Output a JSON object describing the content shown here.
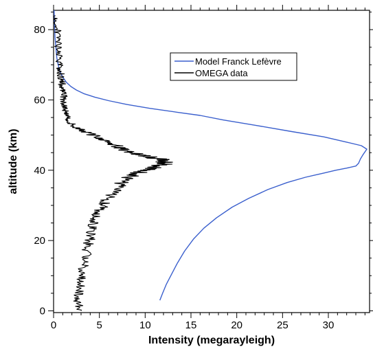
{
  "chart_data": {
    "type": "line",
    "xlabel": "Intensity (megarayleigh)",
    "ylabel": "altitude (km)",
    "xlim": [
      0,
      34.5
    ],
    "ylim": [
      -0.5,
      85.5
    ],
    "x_ticks_major": [
      0,
      5,
      10,
      15,
      20,
      25,
      30
    ],
    "y_ticks_major": [
      0,
      20,
      40,
      60,
      80
    ],
    "grid": false,
    "legend_placement": "top-right",
    "series": [
      {
        "name": "Model Franck Lefèvre",
        "color": "#3a5fcd",
        "points": [
          [
            11.6,
            3
          ],
          [
            11.9,
            5
          ],
          [
            12.3,
            7.5
          ],
          [
            12.9,
            10.5
          ],
          [
            13.5,
            13.5
          ],
          [
            14.3,
            17
          ],
          [
            15.3,
            20.5
          ],
          [
            16.4,
            23.5
          ],
          [
            17.8,
            26.5
          ],
          [
            19.5,
            29.5
          ],
          [
            21.3,
            32
          ],
          [
            23.4,
            34.5
          ],
          [
            25.5,
            36.5
          ],
          [
            27.5,
            38
          ],
          [
            29.5,
            39.2
          ],
          [
            30.8,
            40
          ],
          [
            32.0,
            40.6
          ],
          [
            33.0,
            41.2
          ],
          [
            33.3,
            42
          ],
          [
            33.5,
            43.2
          ],
          [
            33.8,
            44.5
          ],
          [
            34.2,
            46
          ],
          [
            33.6,
            47
          ],
          [
            32.0,
            48
          ],
          [
            29.5,
            49.5
          ],
          [
            26.0,
            51
          ],
          [
            22.0,
            52.8
          ],
          [
            18.5,
            54.3
          ],
          [
            16.0,
            55.6
          ],
          [
            13.5,
            56.5
          ],
          [
            10.5,
            57.6
          ],
          [
            8.0,
            58.7
          ],
          [
            6.0,
            59.8
          ],
          [
            4.5,
            60.8
          ],
          [
            3.3,
            61.8
          ],
          [
            2.5,
            62.8
          ],
          [
            1.9,
            63.8
          ],
          [
            1.4,
            65
          ],
          [
            1.0,
            66.5
          ],
          [
            0.7,
            68
          ],
          [
            0.5,
            70
          ],
          [
            0.35,
            72
          ],
          [
            0.25,
            75
          ],
          [
            0.15,
            78
          ],
          [
            0.1,
            82
          ],
          [
            0.05,
            85.5
          ]
        ]
      },
      {
        "name": "OMEGA data",
        "color": "#000000",
        "points": [
          [
            3.0,
            0
          ],
          [
            2.6,
            3
          ],
          [
            2.8,
            6
          ],
          [
            3.0,
            9
          ],
          [
            3.2,
            12
          ],
          [
            3.5,
            15
          ],
          [
            3.7,
            18
          ],
          [
            4.0,
            21
          ],
          [
            4.3,
            24
          ],
          [
            4.6,
            26.5
          ],
          [
            5.2,
            29
          ],
          [
            5.8,
            31.5
          ],
          [
            6.6,
            34
          ],
          [
            7.4,
            36.5
          ],
          [
            8.5,
            38.5
          ],
          [
            10.0,
            40
          ],
          [
            11.3,
            41
          ],
          [
            12.4,
            42
          ],
          [
            11.8,
            43
          ],
          [
            10.0,
            44
          ],
          [
            8.5,
            45
          ],
          [
            7.5,
            46
          ],
          [
            6.8,
            47
          ],
          [
            5.8,
            48.5
          ],
          [
            4.3,
            50
          ],
          [
            3.0,
            51.5
          ],
          [
            2.0,
            53
          ],
          [
            1.5,
            55
          ],
          [
            1.3,
            57
          ],
          [
            1.2,
            59
          ],
          [
            1.1,
            61
          ],
          [
            1.0,
            63
          ],
          [
            0.9,
            65
          ],
          [
            0.8,
            67
          ],
          [
            0.7,
            69
          ],
          [
            0.6,
            72
          ],
          [
            0.5,
            75
          ],
          [
            0.5,
            78
          ],
          [
            0.4,
            81
          ],
          [
            0.2,
            84
          ]
        ]
      }
    ]
  }
}
